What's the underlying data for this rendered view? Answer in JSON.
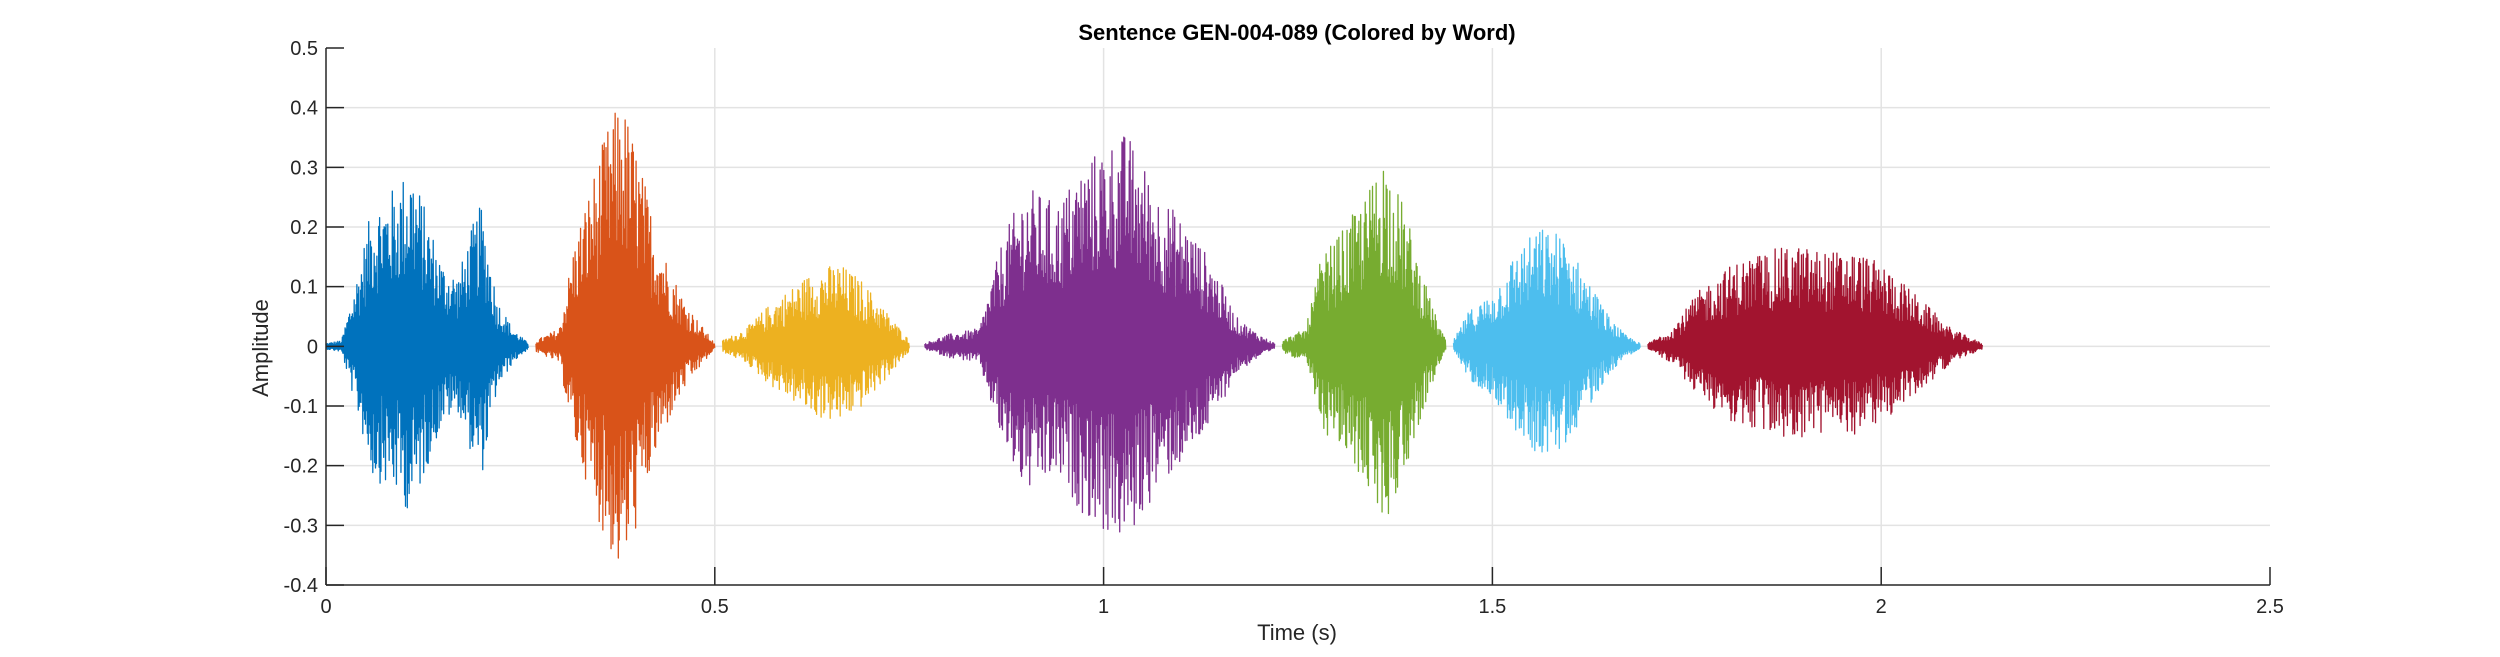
{
  "chart_data": {
    "type": "line",
    "title": "Sentence GEN-004-089 (Colored by Word)",
    "xlabel": "Time (s)",
    "ylabel": "Amplitude",
    "xlim": [
      0,
      2.5
    ],
    "ylim": [
      -0.4,
      0.5
    ],
    "xticks": [
      0,
      0.5,
      1,
      1.5,
      2,
      2.5
    ],
    "xtick_labels": [
      "0",
      "0.5",
      "1",
      "1.5",
      "2",
      "2.5"
    ],
    "yticks": [
      -0.4,
      -0.3,
      -0.2,
      -0.1,
      0,
      0.1,
      0.2,
      0.3,
      0.4,
      0.5
    ],
    "ytick_labels": [
      "-0.4",
      "-0.3",
      "-0.2",
      "-0.1",
      "0",
      "0.1",
      "0.2",
      "0.3",
      "0.4",
      "0.5"
    ],
    "grid": true,
    "legend": false,
    "series": [
      {
        "color": "#0072BD",
        "start": 0.0,
        "end": 0.26,
        "envelope": [
          [
            0.0,
            0.005
          ],
          [
            0.02,
            0.01
          ],
          [
            0.04,
            0.12
          ],
          [
            0.06,
            0.24
          ],
          [
            0.09,
            0.27
          ],
          [
            0.11,
            0.31
          ],
          [
            0.13,
            0.22
          ],
          [
            0.15,
            0.14
          ],
          [
            0.17,
            0.12
          ],
          [
            0.19,
            0.21
          ],
          [
            0.2,
            0.24
          ],
          [
            0.22,
            0.08
          ],
          [
            0.24,
            0.03
          ],
          [
            0.26,
            0.005
          ]
        ]
      },
      {
        "color": "#D95319",
        "start": 0.27,
        "end": 0.5,
        "envelope": [
          [
            0.27,
            0.01
          ],
          [
            0.3,
            0.03
          ],
          [
            0.32,
            0.18
          ],
          [
            0.34,
            0.27
          ],
          [
            0.36,
            0.36
          ],
          [
            0.38,
            0.42
          ],
          [
            0.4,
            0.33
          ],
          [
            0.42,
            0.22
          ],
          [
            0.44,
            0.14
          ],
          [
            0.46,
            0.08
          ],
          [
            0.48,
            0.04
          ],
          [
            0.5,
            0.005
          ]
        ]
      },
      {
        "color": "#EDB120",
        "start": 0.51,
        "end": 0.75,
        "envelope": [
          [
            0.51,
            0.01
          ],
          [
            0.54,
            0.03
          ],
          [
            0.57,
            0.07
          ],
          [
            0.6,
            0.1
          ],
          [
            0.63,
            0.13
          ],
          [
            0.66,
            0.14
          ],
          [
            0.69,
            0.11
          ],
          [
            0.72,
            0.06
          ],
          [
            0.75,
            0.01
          ]
        ]
      },
      {
        "color": "#7E2F8E",
        "start": 0.77,
        "end": 1.22,
        "envelope": [
          [
            0.77,
            0.005
          ],
          [
            0.8,
            0.02
          ],
          [
            0.84,
            0.03
          ],
          [
            0.87,
            0.18
          ],
          [
            0.9,
            0.27
          ],
          [
            0.94,
            0.24
          ],
          [
            0.97,
            0.3
          ],
          [
            1.0,
            0.34
          ],
          [
            1.03,
            0.36
          ],
          [
            1.07,
            0.26
          ],
          [
            1.11,
            0.2
          ],
          [
            1.14,
            0.14
          ],
          [
            1.17,
            0.05
          ],
          [
            1.2,
            0.02
          ],
          [
            1.22,
            0.005
          ]
        ]
      },
      {
        "color": "#77AC30",
        "start": 1.23,
        "end": 1.44,
        "envelope": [
          [
            1.23,
            0.01
          ],
          [
            1.26,
            0.03
          ],
          [
            1.28,
            0.15
          ],
          [
            1.31,
            0.2
          ],
          [
            1.34,
            0.26
          ],
          [
            1.36,
            0.33
          ],
          [
            1.39,
            0.22
          ],
          [
            1.41,
            0.12
          ],
          [
            1.43,
            0.04
          ],
          [
            1.44,
            0.01
          ]
        ]
      },
      {
        "color": "#4DBEEE",
        "start": 1.45,
        "end": 1.69,
        "envelope": [
          [
            1.45,
            0.01
          ],
          [
            1.47,
            0.06
          ],
          [
            1.5,
            0.09
          ],
          [
            1.53,
            0.16
          ],
          [
            1.56,
            0.2
          ],
          [
            1.59,
            0.19
          ],
          [
            1.62,
            0.12
          ],
          [
            1.65,
            0.05
          ],
          [
            1.67,
            0.02
          ],
          [
            1.69,
            0.005
          ]
        ]
      },
      {
        "color": "#A2142F",
        "start": 1.7,
        "end": 2.13,
        "envelope": [
          [
            1.7,
            0.005
          ],
          [
            1.73,
            0.03
          ],
          [
            1.77,
            0.1
          ],
          [
            1.81,
            0.14
          ],
          [
            1.85,
            0.16
          ],
          [
            1.89,
            0.17
          ],
          [
            1.93,
            0.16
          ],
          [
            1.97,
            0.16
          ],
          [
            2.01,
            0.13
          ],
          [
            2.05,
            0.08
          ],
          [
            2.09,
            0.03
          ],
          [
            2.13,
            0.005
          ]
        ]
      }
    ]
  }
}
